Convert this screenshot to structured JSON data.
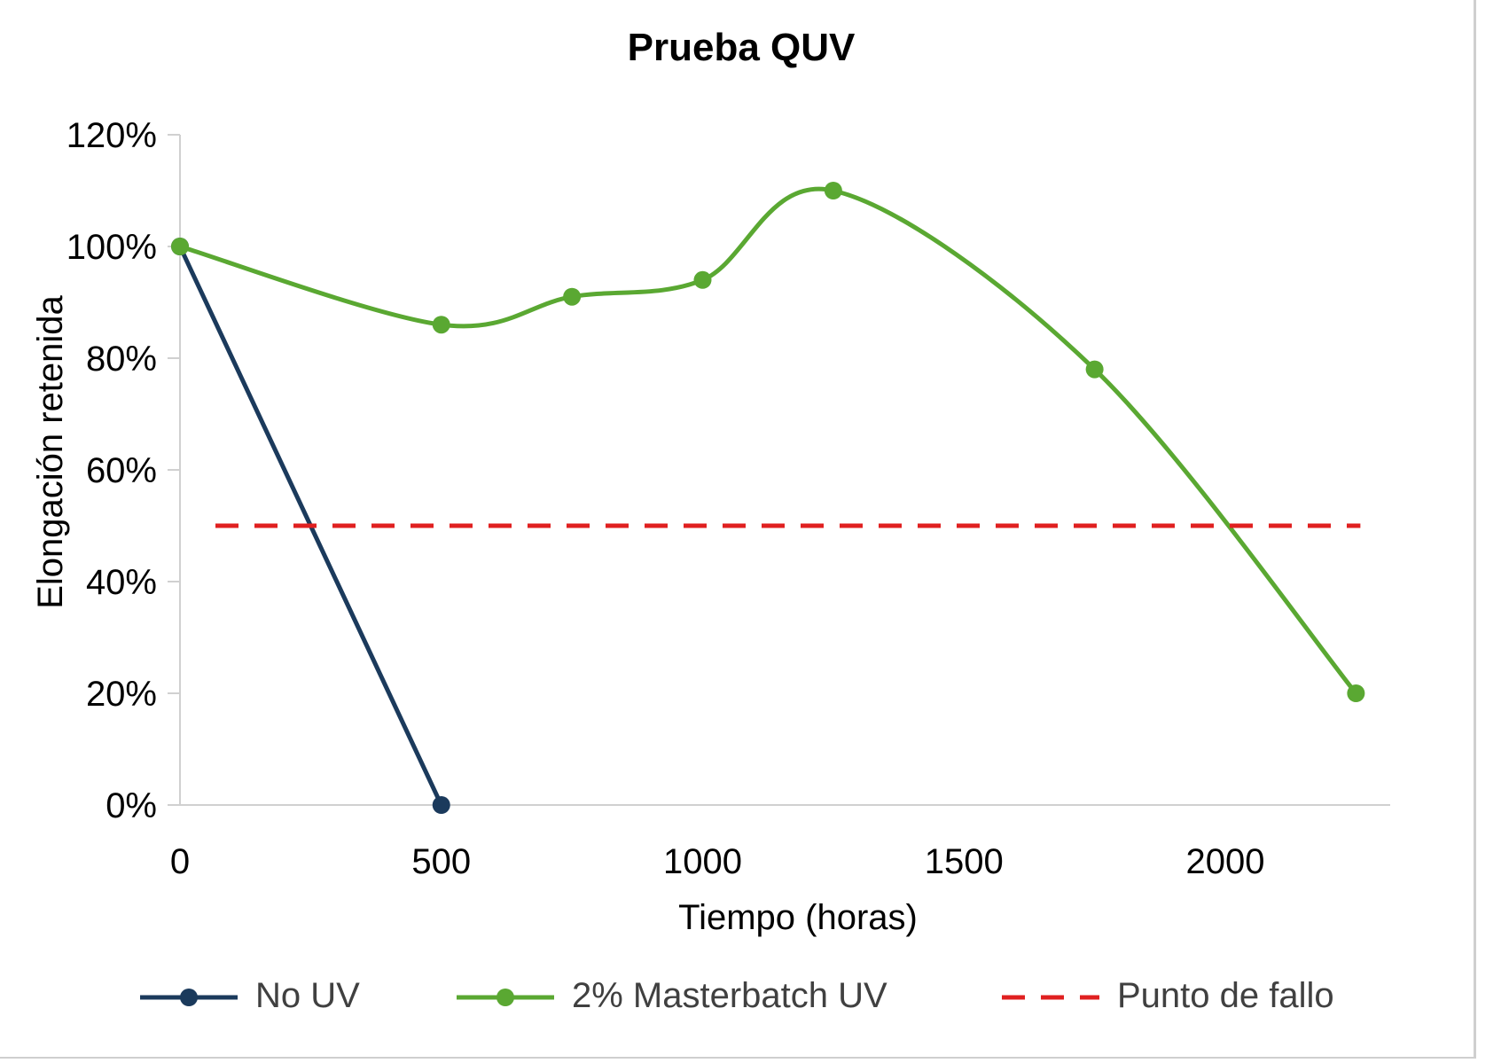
{
  "chart_data": {
    "type": "line",
    "title": "Prueba QUV",
    "xlabel": "Tiempo (horas)",
    "ylabel": "Elongación retenida",
    "xlim": [
      0,
      2300
    ],
    "ylim": [
      0,
      1.2
    ],
    "x_ticks": [
      "0",
      "500",
      "1000",
      "1500",
      "2000"
    ],
    "y_ticks": [
      "0%",
      "20%",
      "40%",
      "60%",
      "80%",
      "100%",
      "120%"
    ],
    "grid": false,
    "legend_position": "bottom",
    "series": [
      {
        "name": "No UV",
        "color": "#1b3a5c",
        "style": "solid-markers",
        "x": [
          0,
          500
        ],
        "y": [
          1.0,
          0.0
        ]
      },
      {
        "name": "2% Masterbatch UV",
        "color": "#5aa832",
        "style": "smooth-markers",
        "x": [
          0,
          500,
          750,
          1000,
          1250,
          1750,
          2250
        ],
        "y": [
          1.0,
          0.86,
          0.91,
          0.94,
          1.1,
          0.78,
          0.2
        ]
      },
      {
        "name": "Punto de fallo",
        "color": "#e02020",
        "style": "dashed",
        "x": [
          0,
          2250
        ],
        "y": [
          0.5,
          0.5
        ]
      }
    ]
  }
}
